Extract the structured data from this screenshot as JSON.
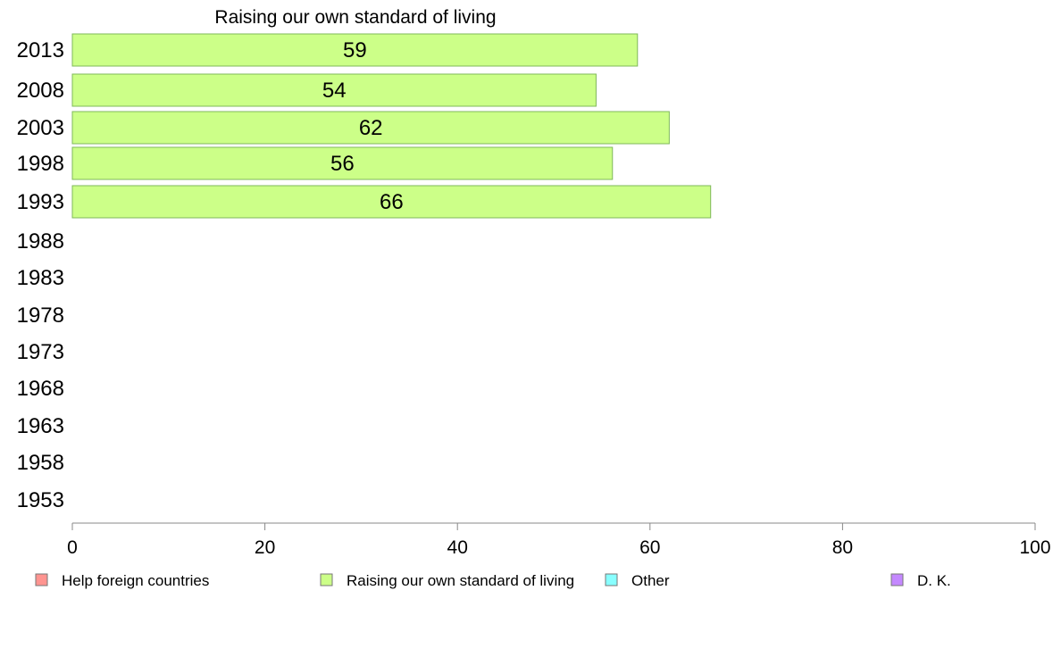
{
  "chart_data": {
    "type": "bar",
    "orientation": "horizontal",
    "title": "Raising our own standard of living",
    "categories": [
      "2013",
      "2008",
      "2003",
      "1998",
      "1993",
      "1988",
      "1983",
      "1978",
      "1973",
      "1968",
      "1963",
      "1958",
      "1953"
    ],
    "series": [
      {
        "name": "Raising our own standard of living",
        "color": "#ccff88",
        "values": [
          58.7,
          54.4,
          62.0,
          56.1,
          66.3,
          null,
          null,
          null,
          null,
          null,
          null,
          null,
          null
        ],
        "labels": [
          "59",
          "54",
          "62",
          "56",
          "66",
          "",
          "",
          "",
          "",
          "",
          "",
          "",
          ""
        ]
      }
    ],
    "xlim": [
      0,
      100
    ],
    "xticks": [
      0,
      20,
      40,
      60,
      80,
      100
    ],
    "xtick_labels": [
      "0",
      "20",
      "40",
      "60",
      "80",
      "100"
    ],
    "grid": false,
    "legend": {
      "position": "bottom",
      "entries": [
        {
          "label": "Help foreign countries",
          "color": "#ff9490"
        },
        {
          "label": "Raising our own standard of living",
          "color": "#ccff88"
        },
        {
          "label": "Other",
          "color": "#88ffff"
        },
        {
          "label": "D. K.",
          "color": "#c488ff"
        }
      ]
    }
  }
}
